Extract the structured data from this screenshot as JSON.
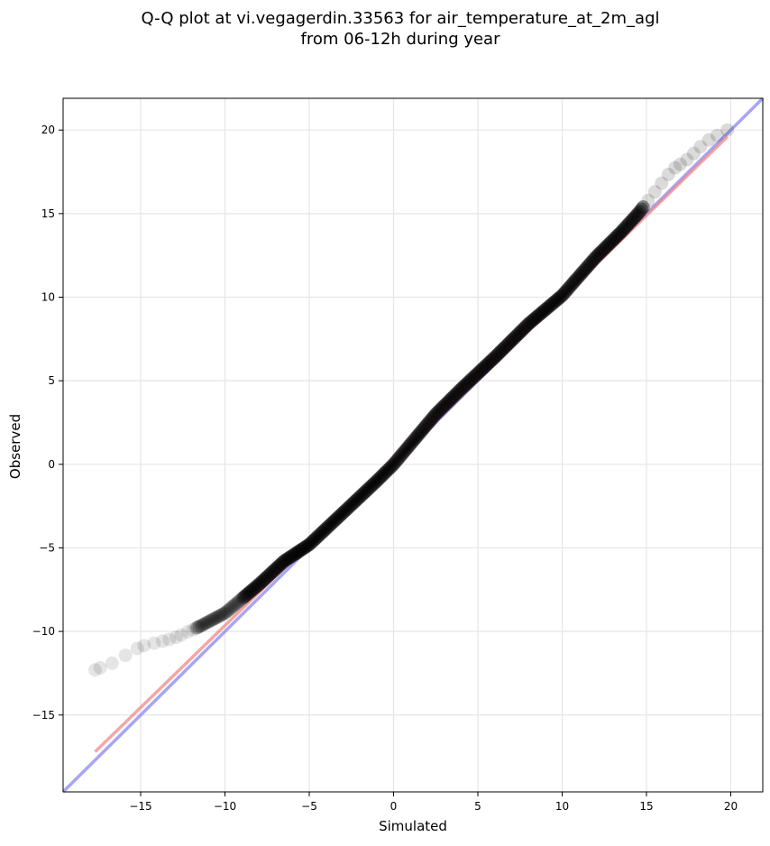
{
  "chart_data": {
    "type": "scatter",
    "title_line1": "Q-Q plot at vi.vegagerdin.33563 for air_temperature_at_2m_agl",
    "title_line2": "from 06-12h during year",
    "xlabel": "Simulated",
    "ylabel": "Observed",
    "xlim": [
      -19.6,
      21.9
    ],
    "ylim": [
      -19.6,
      21.9
    ],
    "xticks": [
      -15,
      -10,
      -5,
      0,
      5,
      10,
      15,
      20
    ],
    "yticks": [
      -15,
      -10,
      -5,
      0,
      5,
      10,
      15,
      20
    ],
    "xtick_labels": [
      "−15",
      "−10",
      "−5",
      "0",
      "5",
      "10",
      "15",
      "20"
    ],
    "ytick_labels": [
      "−15",
      "−10",
      "−5",
      "0",
      "5",
      "10",
      "15",
      "20"
    ],
    "grid": true,
    "colors": {
      "points": "#000000",
      "fit_line": "#f08080",
      "identity_line": "#8080f0"
    },
    "fit_line": {
      "name": "",
      "x": [
        -17.7,
        19.8
      ],
      "y": [
        -17.2,
        19.6
      ]
    },
    "identity_line": {
      "name": "",
      "x": [
        -19.6,
        21.9
      ],
      "y": [
        -19.6,
        21.9
      ]
    },
    "qq_curve": {
      "x": [
        -17.7,
        -16.7,
        -15.0,
        -13.0,
        -11.5,
        -10.0,
        -8.0,
        -6.5,
        -5.0,
        -3.0,
        -1.0,
        0.0,
        1.0,
        2.5,
        4.0,
        6.0,
        8.0,
        10.0,
        12.0,
        13.5,
        14.5,
        15.5,
        16.5,
        17.5,
        18.5,
        19.8
      ],
      "y": [
        -12.3,
        -11.9,
        -10.9,
        -10.4,
        -9.7,
        -8.9,
        -7.2,
        -5.8,
        -4.8,
        -2.9,
        -1.0,
        0.0,
        1.2,
        3.0,
        4.5,
        6.4,
        8.4,
        10.1,
        12.4,
        13.9,
        15.0,
        16.3,
        17.6,
        18.3,
        19.3,
        20.0
      ]
    }
  }
}
